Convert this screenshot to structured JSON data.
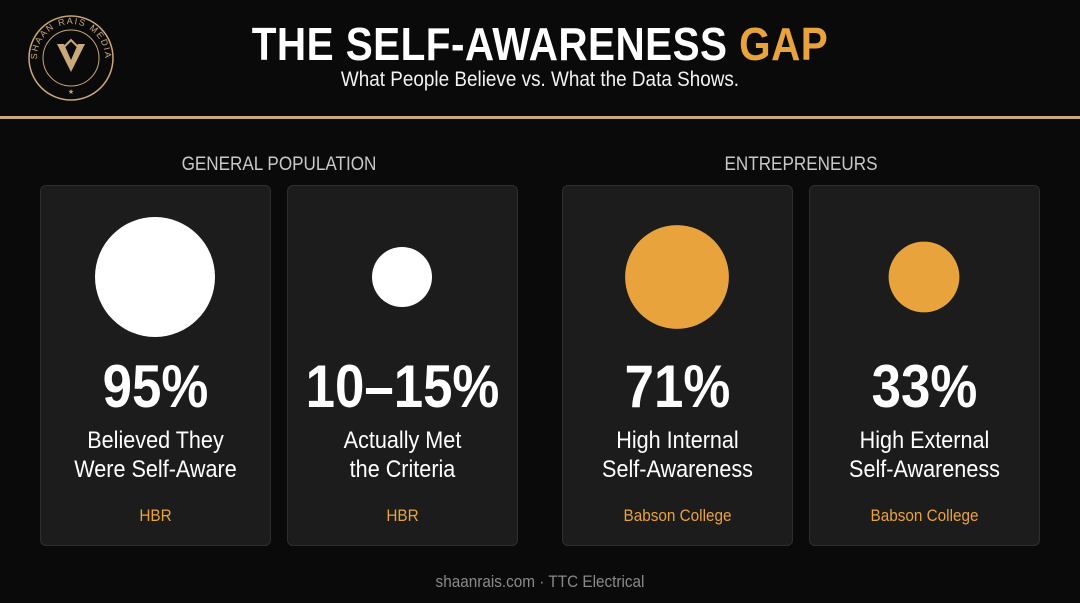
{
  "header": {
    "title_main": "THE SELF-AWARENESS ",
    "title_accent": "GAP",
    "subtitle": "What People Believe vs. What the Data Shows.",
    "logo_text": "SHAAN RAIS MEDIA"
  },
  "groups": [
    {
      "label": "GENERAL POPULATION"
    },
    {
      "label": "ENTREPRENEURS"
    }
  ],
  "colors": {
    "white": "#ffffff",
    "orange": "#e8a33d",
    "accent": "#e8a33d",
    "divider": "#c9a87a"
  },
  "chart_data": {
    "type": "bubble",
    "title": "THE SELF-AWARENESS GAP",
    "subtitle": "What People Believe vs. What the Data Shows.",
    "groups": [
      "GENERAL POPULATION",
      "ENTREPRENEURS"
    ],
    "items": [
      {
        "group": "GENERAL POPULATION",
        "value_label": "95%",
        "value": 95,
        "line1": "Believed They",
        "line2": "Were Self-Aware",
        "source": "HBR",
        "color": "#ffffff"
      },
      {
        "group": "GENERAL POPULATION",
        "value_label": "10–15%",
        "value": 12.5,
        "line1": "Actually Met",
        "line2": "the Criteria",
        "source": "HBR",
        "color": "#ffffff"
      },
      {
        "group": "ENTREPRENEURS",
        "value_label": "71%",
        "value": 71,
        "line1": "High Internal",
        "line2": "Self-Awareness",
        "source": "Babson College",
        "color": "#e8a33d"
      },
      {
        "group": "ENTREPRENEURS",
        "value_label": "33%",
        "value": 33,
        "line1": "High External",
        "line2": "Self-Awareness",
        "source": "Babson College",
        "color": "#e8a33d"
      }
    ]
  },
  "footer": {
    "text": "shaanrais.com · TTC Electrical"
  }
}
